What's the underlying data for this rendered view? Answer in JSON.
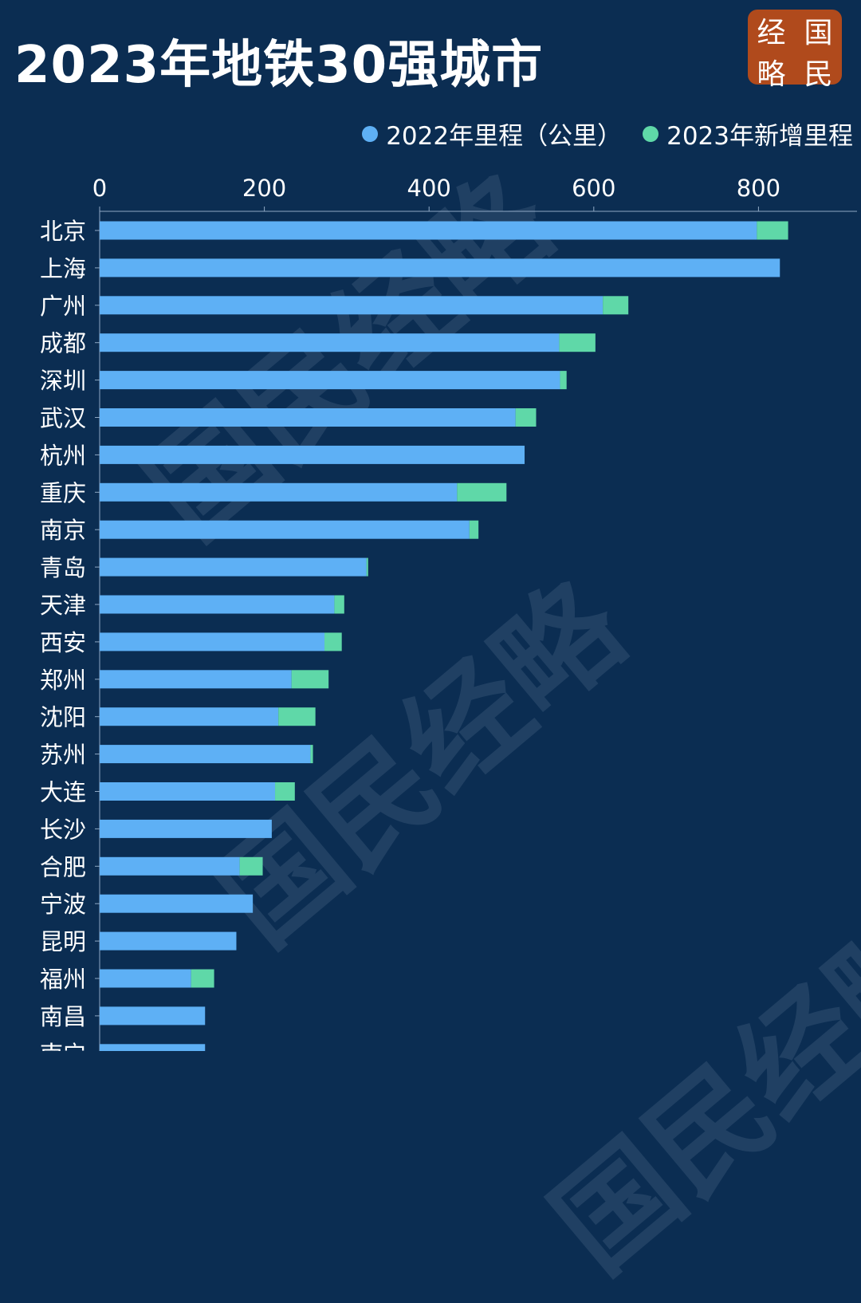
{
  "page": {
    "title": "2023年地铁30强城市",
    "seal_chars": [
      "经",
      "国",
      "略",
      "民"
    ]
  },
  "legend": {
    "base_label": "2022年里程（公里）",
    "added_label": "2023年新增里程"
  },
  "colors": {
    "background": "#0b2d52",
    "base_bar": "#5eb0f5",
    "added_bar": "#5fd8a8",
    "text": "#ffffff",
    "axis": "#8fa8c4"
  },
  "watermark_text": "国民经略",
  "chart_data": {
    "type": "bar",
    "orientation": "horizontal",
    "stacked": true,
    "title": "2023年地铁30强城市",
    "xlabel": "",
    "ylabel": "",
    "xlim": [
      0,
      920
    ],
    "x_ticks": [
      0,
      200,
      400,
      600,
      800
    ],
    "grid": false,
    "legend_position": "top-right",
    "categories": [
      "北京",
      "上海",
      "广州",
      "成都",
      "深圳",
      "武汉",
      "杭州",
      "重庆",
      "南京",
      "青岛",
      "天津",
      "西安",
      "郑州",
      "沈阳",
      "苏州",
      "大连",
      "长沙",
      "合肥",
      "宁波",
      "昆明",
      "福州",
      "南昌",
      "南宁"
    ],
    "series": [
      {
        "name": "2022年里程（公里）",
        "values": [
          798,
          826,
          611,
          558,
          559,
          505,
          516,
          434,
          449,
          324,
          285,
          273,
          233,
          217,
          256,
          213,
          209,
          170,
          186,
          166,
          111,
          128,
          128
        ]
      },
      {
        "name": "2023年新增里程",
        "values": [
          38,
          0,
          31,
          44,
          8,
          25,
          0,
          60,
          11,
          2,
          12,
          21,
          45,
          45,
          3,
          24,
          0,
          28,
          0,
          0,
          28,
          0,
          0
        ]
      }
    ]
  }
}
